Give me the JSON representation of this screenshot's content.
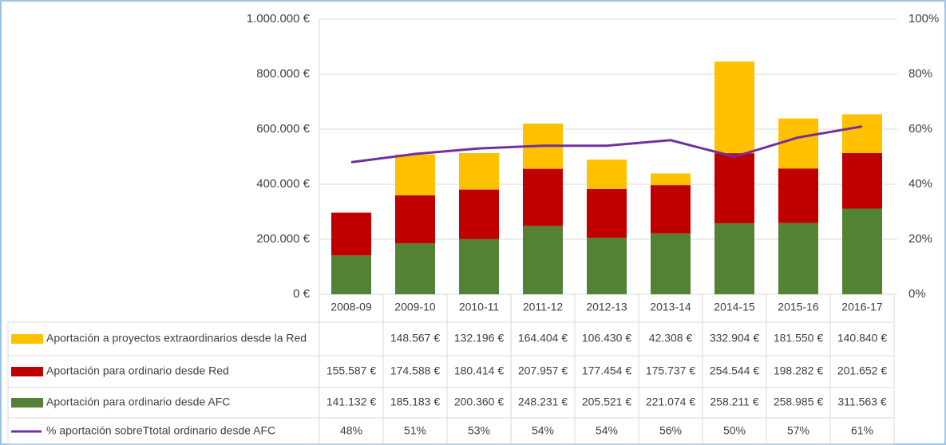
{
  "chart_data": {
    "type": "bar",
    "stacked": true,
    "categories": [
      "2008-09",
      "2009-10",
      "2010-11",
      "2011-12",
      "2012-13",
      "2013-14",
      "2014-15",
      "2015-16",
      "2016-17"
    ],
    "series": [
      {
        "name": "Aportación a proyectos extraordinarios desde la Red",
        "color": "#ffc000",
        "values": [
          null,
          148567,
          132196,
          164404,
          106430,
          42308,
          332904,
          181550,
          140840
        ],
        "value_labels": [
          null,
          "148.567 €",
          "132.196 €",
          "164.404 €",
          "106.430 €",
          "42.308 €",
          "332.904 €",
          "181.550 €",
          "140.840 €"
        ]
      },
      {
        "name": "Aportación para ordinario desde Red",
        "color": "#c00000",
        "values": [
          155587,
          174588,
          180414,
          207957,
          177454,
          175737,
          254544,
          198282,
          201652
        ],
        "value_labels": [
          "155.587 €",
          "174.588 €",
          "180.414 €",
          "207.957 €",
          "177.454 €",
          "175.737 €",
          "254.544 €",
          "198.282 €",
          "201.652 €"
        ]
      },
      {
        "name": "Aportación para ordinario desde AFC",
        "color": "#548235",
        "values": [
          141132,
          185183,
          200360,
          248231,
          205521,
          221074,
          258211,
          258985,
          311563
        ],
        "value_labels": [
          "141.132 €",
          "185.183 €",
          "200.360 €",
          "248.231 €",
          "205.521 €",
          "221.074 €",
          "258.211 €",
          "258.985 €",
          "311.563 €"
        ]
      },
      {
        "name": "% aportación sobreTtotal ordinario desde AFC",
        "color": "#7030a0",
        "type": "line",
        "axis": "y2",
        "values": [
          48,
          51,
          53,
          54,
          54,
          56,
          50,
          57,
          61
        ],
        "value_labels": [
          "48%",
          "51%",
          "53%",
          "54%",
          "54%",
          "56%",
          "50%",
          "57%",
          "61%"
        ]
      }
    ],
    "ylim": [
      0,
      1000000
    ],
    "yticks": [
      {
        "value": 0,
        "label": "0 €"
      },
      {
        "value": 200000,
        "label": "200.000 €"
      },
      {
        "value": 400000,
        "label": "400.000 €"
      },
      {
        "value": 600000,
        "label": "600.000 €"
      },
      {
        "value": 800000,
        "label": "800.000 €"
      },
      {
        "value": 1000000,
        "label": "1.000.000 €"
      }
    ],
    "y2lim": [
      0,
      100
    ],
    "y2ticks": [
      {
        "value": 0,
        "label": "0%"
      },
      {
        "value": 20,
        "label": "20%"
      },
      {
        "value": 40,
        "label": "40%"
      },
      {
        "value": 60,
        "label": "60%"
      },
      {
        "value": 80,
        "label": "80%"
      },
      {
        "value": 100,
        "label": "100%"
      }
    ],
    "grid": true
  }
}
